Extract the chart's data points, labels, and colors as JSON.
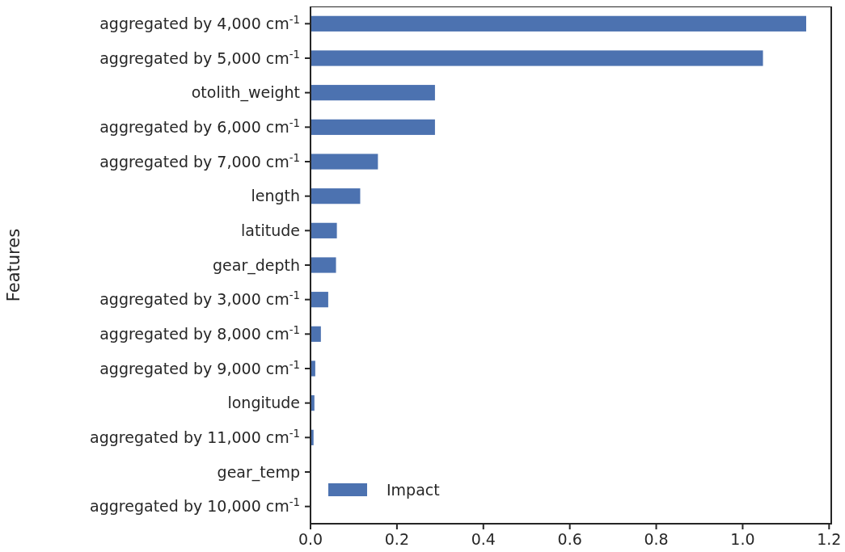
{
  "chart_data": {
    "type": "bar",
    "orientation": "horizontal",
    "ylabel": "Features",
    "categories": [
      "aggregated by 4,000 cm$^{-1}$",
      "aggregated by 5,000 cm$^{-1}$",
      "otolith_weight",
      "aggregated by 6,000 cm$^{-1}$",
      "aggregated by 7,000 cm$^{-1}$",
      "length",
      "latitude",
      "gear_depth",
      "aggregated by 3,000 cm$^{-1}$",
      "aggregated by 8,000 cm$^{-1}$",
      "aggregated by 9,000 cm$^{-1}$",
      "longitude",
      "aggregated by 11,000 cm$^{-1}$",
      "gear_temp",
      "aggregated by 10,000 cm$^{-1}$"
    ],
    "series": [
      {
        "name": "Impact",
        "color": "#4c72b0",
        "values": [
          1.147,
          1.047,
          0.288,
          0.288,
          0.156,
          0.115,
          0.061,
          0.059,
          0.041,
          0.024,
          0.011,
          0.009,
          0.007,
          null,
          null
        ]
      }
    ],
    "xlim": [
      0,
      1.205
    ],
    "xticks": [
      {
        "value": 0,
        "label": "0.0"
      },
      {
        "value": 0.2,
        "label": "0.2"
      },
      {
        "value": 0.4,
        "label": "0.4"
      },
      {
        "value": 0.6,
        "label": "0.6"
      },
      {
        "value": 0.8,
        "label": "0.8"
      },
      {
        "value": 1,
        "label": "1.0"
      },
      {
        "value": 1.2,
        "label": "1.2"
      }
    ],
    "grid": false,
    "legend": "bottom left"
  }
}
